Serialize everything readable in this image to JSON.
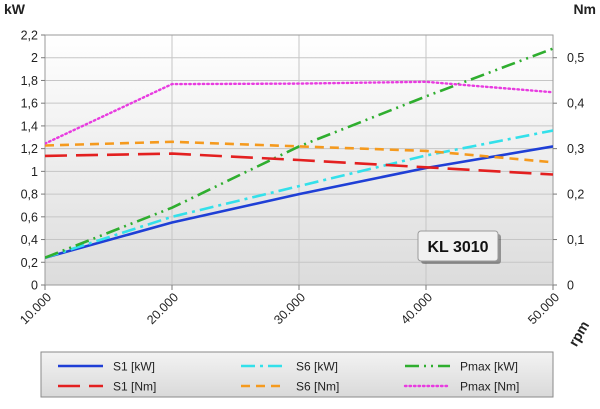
{
  "chart_data": {
    "type": "line",
    "x": [
      10000,
      20000,
      30000,
      40000,
      50000
    ],
    "x_tick_labels": [
      "10.000",
      "20.000",
      "30.000",
      "40.000",
      "50.000"
    ],
    "xlabel": "rpm",
    "y_left_label": "kW",
    "y_right_label": "Nm",
    "y_left_lim": [
      0,
      2.2
    ],
    "y_right_lim": [
      0,
      0.55
    ],
    "y_left_ticks": [
      "0",
      "0,2",
      "0,4",
      "0,6",
      "0,8",
      "1",
      "1,2",
      "1,4",
      "1,6",
      "1,8",
      "2",
      "2,2"
    ],
    "y_right_ticks": [
      "0",
      "0,1",
      "0,2",
      "0,3",
      "0,4",
      "0,5"
    ],
    "grid": true,
    "annotation": "KL 3010",
    "series": [
      {
        "name": "S1 [kW]",
        "axis": "left",
        "color": "#1f3fd6",
        "style": "solid",
        "values": [
          0.24,
          0.55,
          0.8,
          1.03,
          1.22
        ]
      },
      {
        "name": "S6 [kW]",
        "axis": "left",
        "color": "#33e0ea",
        "style": "dashdot",
        "values": [
          0.24,
          0.6,
          0.87,
          1.14,
          1.36
        ]
      },
      {
        "name": "Pmax [kW]",
        "axis": "left",
        "color": "#2fae2f",
        "style": "dashdotdot",
        "values": [
          0.24,
          0.68,
          1.22,
          1.66,
          2.08
        ]
      },
      {
        "name": "S1 [Nm]",
        "axis": "right",
        "color": "#e32020",
        "style": "longdash",
        "values": [
          0.284,
          0.289,
          0.275,
          0.259,
          0.243
        ]
      },
      {
        "name": "S6 [Nm]",
        "axis": "right",
        "color": "#f59a1e",
        "style": "dash",
        "values": [
          0.307,
          0.315,
          0.305,
          0.295,
          0.27
        ]
      },
      {
        "name": "Pmax [Nm]",
        "axis": "right",
        "color": "#e83be0",
        "style": "dotted",
        "values": [
          0.311,
          0.442,
          0.443,
          0.447,
          0.424
        ]
      }
    ]
  }
}
